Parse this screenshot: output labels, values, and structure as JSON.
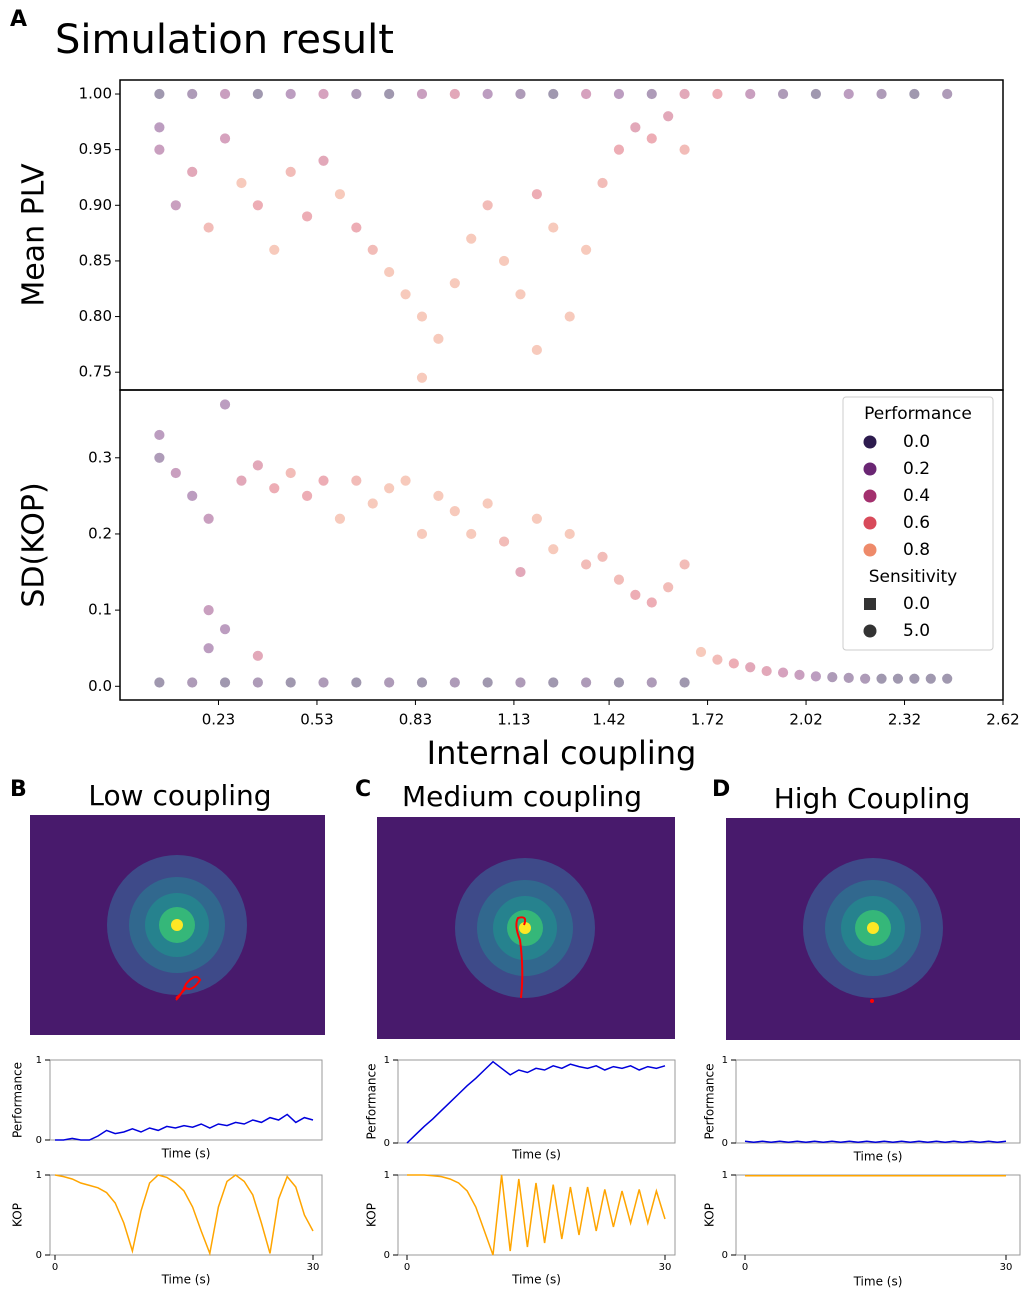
{
  "chart_data": [
    {
      "type": "scatter",
      "panel": "A",
      "title": "Simulation result",
      "ylabel": "Mean PLV",
      "x": [
        0.05,
        0.15,
        0.25,
        0.35,
        0.45,
        0.55,
        0.65,
        0.75,
        0.85,
        0.95,
        1.05,
        1.15,
        1.25,
        1.35,
        1.45,
        1.55,
        1.65,
        1.75,
        1.85,
        1.95,
        2.05,
        2.15,
        2.25,
        2.35,
        2.45,
        0.05,
        0.05,
        0.1,
        0.15,
        0.2,
        0.25,
        0.3,
        0.35,
        0.4,
        0.45,
        0.5,
        0.55,
        0.6,
        0.65,
        0.7,
        0.75,
        0.8,
        0.85,
        0.9,
        0.95,
        1.0,
        1.05,
        1.1,
        1.15,
        1.2,
        1.25,
        1.3,
        1.35,
        1.4,
        1.45,
        1.5,
        1.55,
        1.6,
        1.65,
        0.85,
        1.2
      ],
      "values": [
        1,
        1,
        1,
        1,
        1,
        1,
        1,
        1,
        1,
        1,
        1,
        1,
        1,
        1,
        1,
        1,
        1,
        1,
        1,
        1,
        1,
        1,
        1,
        1,
        1,
        0.97,
        0.95,
        0.9,
        0.93,
        0.88,
        0.96,
        0.92,
        0.9,
        0.86,
        0.93,
        0.89,
        0.94,
        0.91,
        0.88,
        0.86,
        0.84,
        0.82,
        0.8,
        0.78,
        0.83,
        0.87,
        0.9,
        0.85,
        0.82,
        0.91,
        0.88,
        0.8,
        0.86,
        0.92,
        0.95,
        0.97,
        0.96,
        0.98,
        0.95,
        0.745,
        0.77
      ],
      "hue": [
        0,
        0.1,
        0.3,
        0,
        0.2,
        0.4,
        0.1,
        0,
        0.3,
        0.5,
        0.2,
        0.1,
        0,
        0.4,
        0.2,
        0.1,
        0.5,
        0.6,
        0.3,
        0.1,
        0,
        0.2,
        0.1,
        0,
        0.1,
        0.2,
        0.3,
        0.3,
        0.5,
        0.7,
        0.4,
        0.8,
        0.6,
        0.8,
        0.7,
        0.6,
        0.5,
        0.8,
        0.6,
        0.7,
        0.8,
        0.8,
        0.9,
        0.9,
        0.8,
        0.8,
        0.7,
        0.8,
        0.9,
        0.6,
        0.8,
        0.9,
        0.8,
        0.7,
        0.6,
        0.5,
        0.6,
        0.5,
        0.7,
        0.9,
        0.9
      ],
      "xlim": [
        -0.07,
        2.62
      ],
      "ylim": [
        0.734,
        1.0126
      ],
      "yticks": [
        0.75,
        {
          "value": 0.8,
          "label": "0.80"
        },
        0.85,
        {
          "value": 0.9,
          "label": "0.90"
        },
        0.95,
        {
          "value": 1,
          "label": "1.00"
        }
      ]
    },
    {
      "type": "scatter",
      "ylabel": "SD(KOP)",
      "xlabel": "Internal coupling",
      "x": [
        0.05,
        0.05,
        0.1,
        0.15,
        0.2,
        0.25,
        0.3,
        0.35,
        0.4,
        0.45,
        0.5,
        0.55,
        0.6,
        0.65,
        0.7,
        0.75,
        0.8,
        0.85,
        0.9,
        0.95,
        1.0,
        1.05,
        1.1,
        1.15,
        1.2,
        1.25,
        1.3,
        1.35,
        1.4,
        1.45,
        1.5,
        1.55,
        1.6,
        1.65,
        0.2,
        0.25,
        0.2,
        0.35,
        1.7,
        1.75,
        1.8,
        1.85,
        1.9,
        1.95,
        2.0,
        2.05,
        2.1,
        2.15,
        2.2,
        2.25,
        2.3,
        2.35,
        2.4,
        2.45,
        0.05,
        0.15,
        0.25,
        0.35,
        0.45,
        0.55,
        0.65,
        0.75,
        0.85,
        0.95,
        1.05,
        1.15,
        1.25,
        1.35,
        1.45,
        1.55,
        1.65
      ],
      "values": [
        0.3,
        0.33,
        0.28,
        0.25,
        0.22,
        0.37,
        0.27,
        0.29,
        0.26,
        0.28,
        0.25,
        0.27,
        0.22,
        0.27,
        0.24,
        0.26,
        0.27,
        0.2,
        0.25,
        0.23,
        0.2,
        0.24,
        0.19,
        0.15,
        0.22,
        0.18,
        0.2,
        0.16,
        0.17,
        0.14,
        0.12,
        0.11,
        0.13,
        0.16,
        0.1,
        0.075,
        0.05,
        0.04,
        0.045,
        0.035,
        0.03,
        0.025,
        0.02,
        0.018,
        0.015,
        0.013,
        0.012,
        0.011,
        0.01,
        0.01,
        0.01,
        0.01,
        0.01,
        0.01,
        0.005,
        0.005,
        0.005,
        0.005,
        0.005,
        0.005,
        0.005,
        0.005,
        0.005,
        0.005,
        0.005,
        0.005,
        0.005,
        0.005,
        0.005,
        0.005,
        0.005
      ],
      "hue": [
        0.1,
        0.2,
        0.3,
        0.2,
        0.3,
        0.2,
        0.5,
        0.5,
        0.6,
        0.7,
        0.6,
        0.6,
        0.8,
        0.7,
        0.8,
        0.8,
        0.9,
        0.8,
        0.9,
        0.9,
        0.8,
        0.8,
        0.7,
        0.5,
        0.8,
        0.8,
        0.8,
        0.7,
        0.7,
        0.7,
        0.6,
        0.6,
        0.7,
        0.7,
        0.3,
        0.2,
        0.2,
        0.5,
        0.8,
        0.7,
        0.6,
        0.5,
        0.5,
        0.4,
        0.3,
        0.2,
        0.1,
        0.1,
        0.1,
        0,
        0,
        0,
        0,
        0,
        0,
        0.1,
        0,
        0.1,
        0,
        0.1,
        0,
        0.1,
        0,
        0.1,
        0,
        0.1,
        0,
        0.1,
        0,
        0.1,
        0
      ],
      "xlim": [
        -0.07,
        2.62
      ],
      "ylim": [
        -0.018,
        0.389
      ],
      "xticks": [
        0.23,
        0.53,
        0.83,
        1.13,
        1.42,
        1.72,
        2.02,
        2.32,
        2.62
      ],
      "yticks": [
        {
          "value": 0,
          "label": "0.0"
        },
        0.1,
        0.2,
        0.3
      ],
      "legend": {
        "loc": "upper right",
        "hue_title": "Performance",
        "hue_items": [
          {
            "value": 0,
            "label": "0.0",
            "color": "#2d1b4e"
          },
          {
            "value": 0.2,
            "color": "#6a2673"
          },
          {
            "value": 0.4,
            "color": "#a3306e"
          },
          {
            "value": 0.6,
            "color": "#d84a5a"
          },
          {
            "value": 0.8,
            "color": "#ee8a6a"
          }
        ],
        "size_title": "Sensitivity",
        "size_items": [
          {
            "value": 0,
            "label": "0.0",
            "marker": "square"
          },
          {
            "value": 5,
            "label": "5.0",
            "marker": "circle"
          }
        ]
      }
    },
    {
      "type": "line",
      "panel": "B",
      "title": "Low coupling",
      "ylabel": "Performance",
      "xlabel": "Time (s)",
      "color": "#0000dd",
      "x": [
        0,
        1,
        2,
        3,
        4,
        5,
        6,
        7,
        8,
        9,
        10,
        11,
        12,
        13,
        14,
        15,
        16,
        17,
        18,
        19,
        20,
        21,
        22,
        23,
        24,
        25,
        26,
        27,
        28,
        29,
        30
      ],
      "values": [
        0,
        0,
        0.02,
        0,
        0,
        0.05,
        0.12,
        0.08,
        0.1,
        0.14,
        0.1,
        0.15,
        0.12,
        0.17,
        0.15,
        0.18,
        0.16,
        0.2,
        0.15,
        0.2,
        0.18,
        0.22,
        0.2,
        0.25,
        0.22,
        0.28,
        0.25,
        0.32,
        0.22,
        0.28,
        0.25
      ],
      "xlim": [
        0,
        30
      ],
      "ylim": [
        0,
        1
      ],
      "yticks": [
        0,
        1
      ]
    },
    {
      "type": "line",
      "ylabel": "KOP",
      "xlabel": "Time (s)",
      "color": "orange",
      "x": [
        0,
        1,
        2,
        3,
        4,
        5,
        6,
        7,
        8,
        9,
        10,
        11,
        12,
        13,
        14,
        15,
        16,
        17,
        18,
        19,
        20,
        21,
        22,
        23,
        24,
        25,
        26,
        27,
        28,
        29,
        30
      ],
      "values": [
        1,
        0.98,
        0.95,
        0.9,
        0.87,
        0.84,
        0.78,
        0.65,
        0.4,
        0.05,
        0.55,
        0.9,
        1,
        0.97,
        0.9,
        0.8,
        0.6,
        0.3,
        0.02,
        0.6,
        0.92,
        1,
        0.92,
        0.75,
        0.4,
        0.02,
        0.7,
        0.98,
        0.85,
        0.5,
        0.3
      ],
      "xlim": [
        0,
        30
      ],
      "ylim": [
        0,
        1
      ],
      "yticks": [
        0,
        1
      ],
      "xticks": [
        0,
        30
      ]
    },
    {
      "type": "line",
      "panel": "C",
      "title": "Medium coupling",
      "ylabel": "Performance",
      "xlabel": "Time (s)",
      "color": "#0000dd",
      "x": [
        0,
        1,
        2,
        3,
        4,
        5,
        6,
        7,
        8,
        9,
        10,
        11,
        12,
        13,
        14,
        15,
        16,
        17,
        18,
        19,
        20,
        21,
        22,
        23,
        24,
        25,
        26,
        27,
        28,
        29,
        30
      ],
      "values": [
        0,
        0.1,
        0.2,
        0.29,
        0.39,
        0.49,
        0.59,
        0.69,
        0.78,
        0.88,
        0.98,
        0.9,
        0.82,
        0.88,
        0.85,
        0.9,
        0.88,
        0.93,
        0.9,
        0.95,
        0.92,
        0.9,
        0.93,
        0.88,
        0.92,
        0.9,
        0.93,
        0.88,
        0.92,
        0.9,
        0.93
      ],
      "xlim": [
        0,
        30
      ],
      "ylim": [
        0,
        1
      ],
      "yticks": [
        0,
        1
      ]
    },
    {
      "type": "line",
      "ylabel": "KOP",
      "xlabel": "Time (s)",
      "color": "orange",
      "x": [
        0,
        1,
        2,
        3,
        4,
        5,
        6,
        7,
        8,
        9,
        10,
        11,
        12,
        13,
        14,
        15,
        16,
        17,
        18,
        19,
        20,
        21,
        22,
        23,
        24,
        25,
        26,
        27,
        28,
        29,
        30
      ],
      "values": [
        1,
        1,
        1,
        0.99,
        0.98,
        0.95,
        0.9,
        0.8,
        0.6,
        0.3,
        0,
        1,
        0.05,
        0.95,
        0.1,
        0.9,
        0.15,
        0.88,
        0.2,
        0.85,
        0.25,
        0.85,
        0.3,
        0.82,
        0.35,
        0.8,
        0.4,
        0.82,
        0.4,
        0.8,
        0.45
      ],
      "xlim": [
        0,
        30
      ],
      "ylim": [
        0,
        1
      ],
      "yticks": [
        0,
        1
      ],
      "xticks": [
        0,
        30
      ]
    },
    {
      "type": "line",
      "panel": "D",
      "title": "High Coupling",
      "ylabel": "Performance",
      "xlabel": "Time (s)",
      "color": "#0000dd",
      "x": [
        0,
        1,
        2,
        3,
        4,
        5,
        6,
        7,
        8,
        9,
        10,
        11,
        12,
        13,
        14,
        15,
        16,
        17,
        18,
        19,
        20,
        21,
        22,
        23,
        24,
        25,
        26,
        27,
        28,
        29,
        30
      ],
      "values": [
        0.02,
        0.01,
        0.02,
        0.01,
        0.02,
        0.01,
        0.02,
        0.01,
        0.02,
        0.01,
        0.02,
        0.01,
        0.02,
        0.01,
        0.02,
        0.01,
        0.02,
        0.01,
        0.02,
        0.01,
        0.02,
        0.01,
        0.02,
        0.01,
        0.02,
        0.01,
        0.02,
        0.01,
        0.02,
        0.01,
        0.02
      ],
      "xlim": [
        0,
        30
      ],
      "ylim": [
        0,
        1
      ],
      "yticks": [
        0,
        1
      ]
    },
    {
      "type": "line",
      "ylabel": "KOP",
      "xlabel": "Time (s)",
      "color": "orange",
      "x": [
        0,
        1,
        2,
        3,
        4,
        5,
        6,
        7,
        8,
        9,
        10,
        11,
        12,
        13,
        14,
        15,
        16,
        17,
        18,
        19,
        20,
        21,
        22,
        23,
        24,
        25,
        26,
        27,
        28,
        29,
        30
      ],
      "values": [
        0.99,
        0.99,
        0.99,
        0.99,
        0.99,
        0.99,
        0.99,
        0.99,
        0.99,
        0.99,
        0.99,
        0.99,
        0.99,
        0.99,
        0.99,
        0.99,
        0.99,
        0.99,
        0.99,
        0.99,
        0.99,
        0.99,
        0.99,
        0.99,
        0.99,
        0.99,
        0.99,
        0.99,
        0.99,
        0.99,
        0.99
      ],
      "xlim": [
        0,
        30
      ],
      "ylim": [
        0,
        1
      ],
      "yticks": [
        0,
        1
      ],
      "xticks": [
        0,
        30
      ]
    }
  ]
}
